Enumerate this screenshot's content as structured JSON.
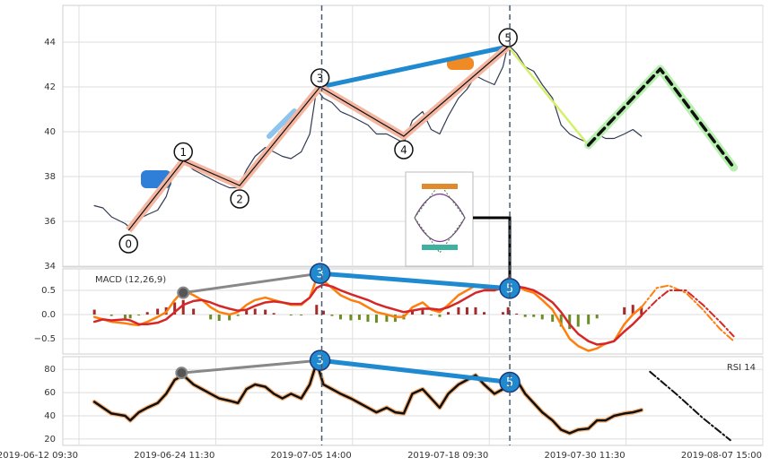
{
  "chart_data": [
    {
      "type": "line",
      "xlim": [
        -9.45,
        400
      ],
      "ylim": [
        33.96,
        45.64
      ],
      "yticks": [
        34,
        36,
        38,
        40,
        42,
        44
      ],
      "grid": true,
      "vlines": [
        142,
        252
      ],
      "series": [
        {
          "color": "#2f3b52",
          "style": "thin",
          "x": [
            9,
            14,
            19,
            27,
            30,
            35,
            40,
            46,
            51,
            56,
            61,
            67,
            72,
            77,
            82,
            88,
            93,
            98,
            103,
            109,
            114,
            119,
            124,
            130,
            135,
            139,
            143,
            148,
            153,
            159,
            164,
            169,
            174,
            180,
            185,
            190,
            195,
            201,
            206,
            211,
            216,
            222,
            227,
            232,
            237,
            243,
            248,
            251,
            256,
            261,
            266,
            271,
            277,
            282,
            287,
            292,
            298,
            303,
            308,
            313,
            319,
            324,
            329
          ],
          "values": [
            36.7,
            36.6,
            36.2,
            35.9,
            35.7,
            36.1,
            36.3,
            36.5,
            37.1,
            38.3,
            38.7,
            38.3,
            38.1,
            37.9,
            37.7,
            37.5,
            37.5,
            38.3,
            38.9,
            39.3,
            39.1,
            38.9,
            38.8,
            39.1,
            39.9,
            41.9,
            41.5,
            41.3,
            40.9,
            40.7,
            40.5,
            40.3,
            39.9,
            39.9,
            39.7,
            39.5,
            40.5,
            40.9,
            40.1,
            39.9,
            40.7,
            41.5,
            41.9,
            42.5,
            42.3,
            42.1,
            42.9,
            43.9,
            43.5,
            42.9,
            42.7,
            42.1,
            41.5,
            40.3,
            39.9,
            39.7,
            39.5,
            39.9,
            39.7,
            39.7,
            39.9,
            40.1,
            39.8
          ]
        },
        {
          "color": "#1f8ad0",
          "style": "thick",
          "x": [
            141,
            251
          ],
          "values": [
            42.0,
            43.8
          ]
        },
        {
          "color": "#d4f06a",
          "style": "medium",
          "x": [
            251,
            298
          ],
          "values": [
            43.8,
            39.4
          ]
        },
        {
          "color": "#111111",
          "style": "dashed",
          "x": [
            298,
            340,
            383
          ],
          "values": [
            39.4,
            42.8,
            38.4
          ]
        }
      ],
      "waves": {
        "color": "#111111",
        "x": [
          29,
          61,
          94,
          141,
          190,
          251
        ],
        "values": [
          35.6,
          38.7,
          37.6,
          42.0,
          39.8,
          43.8
        ],
        "labels": [
          "0",
          "1",
          "2",
          "3",
          "4",
          "5"
        ]
      }
    },
    {
      "type": "line",
      "label": "MACD (12,26,9)",
      "label_corner": "upper left",
      "xlim": [
        -9.45,
        400
      ],
      "ylim": [
        -0.815,
        0.944
      ],
      "yticks": [
        {
          "value": -0.5,
          "label": "−0.5"
        },
        {
          "value": 0,
          "label": "0.0"
        },
        {
          "value": 0.5,
          "label": "0.5"
        }
      ],
      "grid": true,
      "series": [
        {
          "type": "bar",
          "color": "#a52a2a",
          "negative_color": "#6b8e23",
          "x": [
            9,
            14,
            19,
            27,
            30,
            35,
            40,
            46,
            51,
            56,
            61,
            67,
            72,
            77,
            82,
            88,
            93,
            98,
            103,
            109,
            114,
            119,
            124,
            130,
            135,
            139,
            143,
            148,
            153,
            159,
            164,
            169,
            174,
            180,
            185,
            190,
            195,
            201,
            206,
            211,
            216,
            222,
            227,
            232,
            237,
            243,
            248,
            251,
            256,
            261,
            266,
            271,
            277,
            282,
            287,
            292,
            298,
            303,
            308,
            313,
            319,
            324,
            329
          ],
          "values": [
            0.1,
            0,
            -0.03,
            -0.08,
            -0.08,
            -0.02,
            0.05,
            0.12,
            0.15,
            0.25,
            0.3,
            0.12,
            0,
            -0.1,
            -0.13,
            -0.12,
            -0.03,
            0.1,
            0.12,
            0.1,
            0.03,
            0,
            -0.02,
            -0.02,
            0,
            0.2,
            0.08,
            -0.03,
            -0.1,
            -0.12,
            -0.11,
            -0.15,
            -0.17,
            -0.15,
            -0.15,
            -0.1,
            0.07,
            0.13,
            -0.02,
            -0.05,
            0.05,
            0.15,
            0.15,
            0.15,
            0.05,
            0,
            0.05,
            0.15,
            0.02,
            -0.05,
            -0.05,
            -0.1,
            -0.15,
            -0.25,
            -0.3,
            -0.25,
            -0.2,
            -0.08,
            0,
            0,
            0.15,
            0.2,
            0.17
          ]
        },
        {
          "color": "#ff7f0e",
          "style": "medium",
          "x": [
            9,
            14,
            19,
            27,
            30,
            35,
            40,
            46,
            51,
            56,
            61,
            67,
            72,
            77,
            82,
            88,
            93,
            98,
            103,
            109,
            114,
            119,
            124,
            130,
            135,
            139,
            143,
            148,
            153,
            159,
            164,
            169,
            174,
            180,
            185,
            190,
            195,
            201,
            206,
            211,
            216,
            222,
            227,
            232,
            237,
            243,
            248,
            251,
            256,
            261,
            266,
            271,
            277,
            282,
            287,
            292,
            298,
            303,
            308,
            313,
            319,
            324,
            329
          ],
          "values": [
            -0.05,
            -0.1,
            -0.15,
            -0.18,
            -0.2,
            -0.22,
            -0.15,
            -0.05,
            0.05,
            0.3,
            0.5,
            0.4,
            0.3,
            0.15,
            0.05,
            0,
            0.05,
            0.2,
            0.3,
            0.35,
            0.3,
            0.25,
            0.2,
            0.2,
            0.35,
            0.75,
            0.7,
            0.55,
            0.4,
            0.3,
            0.25,
            0.15,
            0.05,
            0,
            -0.05,
            -0.05,
            0.15,
            0.25,
            0.1,
            0.05,
            0.2,
            0.4,
            0.5,
            0.6,
            0.55,
            0.5,
            0.6,
            0.75,
            0.6,
            0.5,
            0.45,
            0.3,
            0.1,
            -0.2,
            -0.5,
            -0.65,
            -0.75,
            -0.7,
            -0.6,
            -0.55,
            -0.2,
            0,
            0.15
          ]
        },
        {
          "color": "#d62728",
          "style": "medium",
          "x": [
            9,
            14,
            19,
            27,
            30,
            35,
            40,
            46,
            51,
            56,
            61,
            67,
            72,
            77,
            82,
            88,
            93,
            98,
            103,
            109,
            114,
            119,
            124,
            130,
            135,
            139,
            143,
            148,
            153,
            159,
            164,
            169,
            174,
            180,
            185,
            190,
            195,
            201,
            206,
            211,
            216,
            222,
            227,
            232,
            237,
            243,
            248,
            251,
            256,
            261,
            266,
            271,
            277,
            282,
            287,
            292,
            298,
            303,
            308,
            313,
            319,
            324,
            329
          ],
          "values": [
            -0.15,
            -0.1,
            -0.12,
            -0.1,
            -0.12,
            -0.2,
            -0.2,
            -0.17,
            -0.1,
            0.05,
            0.2,
            0.28,
            0.3,
            0.25,
            0.18,
            0.12,
            0.08,
            0.1,
            0.18,
            0.25,
            0.27,
            0.25,
            0.22,
            0.22,
            0.35,
            0.55,
            0.62,
            0.58,
            0.5,
            0.42,
            0.36,
            0.3,
            0.22,
            0.15,
            0.1,
            0.05,
            0.08,
            0.12,
            0.12,
            0.1,
            0.15,
            0.25,
            0.35,
            0.45,
            0.5,
            0.5,
            0.55,
            0.6,
            0.58,
            0.55,
            0.5,
            0.4,
            0.25,
            0.05,
            -0.2,
            -0.4,
            -0.55,
            -0.62,
            -0.6,
            -0.55,
            -0.35,
            -0.2,
            -0.02
          ]
        },
        {
          "color": "#ff7f0e",
          "style": "dashdot",
          "x": [
            329,
            338,
            345,
            355,
            365,
            375,
            383
          ],
          "values": [
            0.15,
            0.55,
            0.6,
            0.45,
            0.1,
            -0.3,
            -0.55
          ]
        },
        {
          "color": "#d62728",
          "style": "dashdot",
          "x": [
            329,
            338,
            345,
            355,
            365,
            375,
            383
          ],
          "values": [
            -0.02,
            0.3,
            0.5,
            0.5,
            0.2,
            -0.15,
            -0.45
          ]
        },
        {
          "color": "#888888",
          "style": "pointer",
          "x": [
            61,
            141
          ],
          "values": [
            0.45,
            0.85
          ]
        },
        {
          "color": "#1f8ad0",
          "style": "thick",
          "x": [
            141,
            252
          ],
          "values": [
            0.85,
            0.54
          ]
        }
      ],
      "markers": {
        "color": "#1f8ad0",
        "x": [
          141,
          252
        ],
        "values": [
          0.85,
          0.54
        ],
        "labels": [
          "3",
          "5"
        ]
      }
    },
    {
      "type": "line",
      "label": "RSI 14",
      "label_corner": "upper right",
      "xlim": [
        -9.45,
        400
      ],
      "ylim": [
        14.5,
        91
      ],
      "yticks": [
        20,
        40,
        60,
        80
      ],
      "grid": true,
      "xticks": [
        {
          "value": 0,
          "label": "2019-06-12 09:30"
        },
        {
          "value": 80,
          "label": "2019-06-24 11:30"
        },
        {
          "value": 160,
          "label": "2019-07-05 14:00"
        },
        {
          "value": 240,
          "label": "2019-07-18 09:30"
        },
        {
          "value": 320,
          "label": "2019-07-30 11:30"
        },
        {
          "value": 400,
          "label": "2019-08-07 15:00"
        }
      ],
      "series": [
        {
          "color": "#111111",
          "style": "halo",
          "x": [
            9,
            14,
            19,
            27,
            30,
            35,
            40,
            46,
            51,
            56,
            61,
            67,
            72,
            77,
            82,
            88,
            93,
            98,
            103,
            109,
            114,
            119,
            124,
            130,
            135,
            139,
            143,
            148,
            153,
            159,
            164,
            169,
            174,
            180,
            185,
            190,
            195,
            201,
            206,
            211,
            216,
            222,
            227,
            232,
            237,
            243,
            248,
            251,
            256,
            261,
            266,
            271,
            277,
            282,
            287,
            292,
            298,
            303,
            308,
            313,
            319,
            324,
            329
          ],
          "values": [
            52,
            47,
            42,
            40,
            36,
            43,
            47,
            51,
            59,
            71,
            75,
            67,
            63,
            59,
            55,
            53,
            51,
            63,
            67,
            65,
            59,
            55,
            59,
            55,
            67,
            86,
            67,
            63,
            59,
            55,
            51,
            47,
            43,
            47,
            43,
            42,
            59,
            63,
            55,
            47,
            59,
            67,
            71,
            75,
            67,
            59,
            63,
            75,
            71,
            59,
            51,
            43,
            36,
            28,
            25,
            28,
            29,
            36,
            36,
            40,
            42,
            43,
            45
          ]
        },
        {
          "color": "#111111",
          "style": "dashdot",
          "x": [
            334,
            350,
            365,
            381
          ],
          "values": [
            78,
            58,
            38,
            19
          ]
        },
        {
          "color": "#888888",
          "style": "pointer",
          "x": [
            60,
            141
          ],
          "values": [
            77,
            87.8
          ]
        },
        {
          "color": "#1f8ad0",
          "style": "thick",
          "x": [
            141,
            252
          ],
          "values": [
            87.8,
            69
          ]
        }
      ],
      "markers": {
        "color": "#1f8ad0",
        "x": [
          141,
          252
        ],
        "values": [
          87.8,
          69
        ],
        "labels": [
          "3",
          "5"
        ]
      }
    }
  ]
}
